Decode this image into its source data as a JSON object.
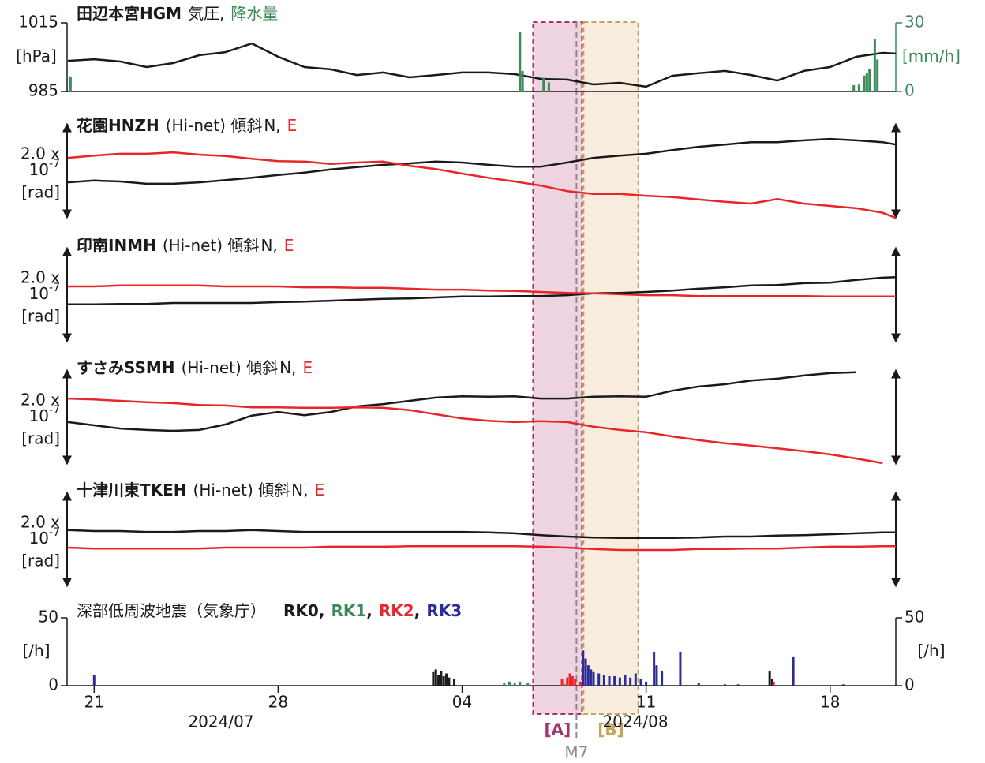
{
  "chart_data": [
    {
      "type": "line",
      "title": "田辺本宮HGM",
      "separator": ",",
      "ylabel": "[hPa]",
      "y2label": "[mm/h]",
      "ylim": [
        985,
        1015
      ],
      "yticks": [
        985,
        1015
      ],
      "y2lim": [
        0,
        30
      ],
      "y2ticks": [
        0,
        30
      ],
      "x": [
        20,
        21,
        22,
        23,
        24,
        25,
        26,
        27,
        28,
        29,
        30,
        31,
        32,
        33,
        34,
        35,
        36,
        37,
        38,
        39,
        40,
        41,
        42,
        43,
        44,
        45,
        46,
        47,
        48,
        49,
        50,
        51,
        51.5
      ],
      "series": [
        {
          "name": "気圧",
          "color": "#1a1a1a",
          "values": [
            998.4,
            999.1,
            998.1,
            995.7,
            997.4,
            1000.9,
            1002.2,
            1006,
            1000.2,
            995.7,
            994.7,
            992.2,
            993.3,
            991.2,
            992.2,
            993.3,
            993.3,
            992.6,
            990.5,
            990.2,
            988.1,
            988.8,
            987.1,
            991.9,
            993.0,
            994.0,
            992.2,
            989.8,
            994.0,
            995.7,
            1000.2,
            1001.9,
            1001.6
          ]
        },
        {
          "name": "降水量",
          "color": "#3a8a5a",
          "type": "bar",
          "axis": "y2",
          "x": [
            20.1,
            37.2,
            37.3,
            38.1,
            38.3,
            49.9,
            50.1,
            50.3,
            50.4,
            50.5,
            50.7,
            50.8
          ],
          "values": [
            6.6,
            26,
            9,
            6,
            4,
            2.8,
            3,
            7,
            8,
            9.7,
            23,
            14
          ]
        }
      ]
    },
    {
      "type": "line",
      "title": "花園HNZH",
      "subtitle": "(Hi-net) 傾斜",
      "separator": ",",
      "scale_bar": {
        "value": 2.0,
        "label": "2.0 x"
      },
      "scale_base": "10",
      "scale_exponent": "-7",
      "scale_unit": "[rad]",
      "ylim": [
        0,
        2
      ],
      "x": [
        20,
        21,
        22,
        23,
        24,
        25,
        26,
        27,
        28,
        29,
        30,
        31,
        32,
        33,
        34,
        35,
        36,
        37,
        38,
        39,
        40,
        41,
        42,
        43,
        44,
        45,
        46,
        47,
        48,
        49,
        50,
        51,
        51.5
      ],
      "series": [
        {
          "name": "N",
          "color": "#1a1a1a",
          "values": [
            0.75,
            0.79,
            0.77,
            0.72,
            0.72,
            0.75,
            0.8,
            0.85,
            0.91,
            0.96,
            1.03,
            1.08,
            1.13,
            1.16,
            1.2,
            1.18,
            1.13,
            1.09,
            1.09,
            1.18,
            1.28,
            1.33,
            1.37,
            1.45,
            1.52,
            1.57,
            1.62,
            1.62,
            1.66,
            1.69,
            1.66,
            1.62,
            1.57
          ]
        },
        {
          "name": "E",
          "color": "#e8262a",
          "values": [
            1.28,
            1.33,
            1.37,
            1.37,
            1.4,
            1.35,
            1.32,
            1.26,
            1.21,
            1.2,
            1.15,
            1.18,
            1.2,
            1.11,
            1.04,
            0.94,
            0.85,
            0.77,
            0.68,
            0.56,
            0.5,
            0.5,
            0.46,
            0.43,
            0.38,
            0.33,
            0.29,
            0.39,
            0.29,
            0.24,
            0.19,
            0.09,
            -0.02
          ]
        }
      ]
    },
    {
      "type": "line",
      "title": "印南INMH",
      "subtitle": "(Hi-net) 傾斜",
      "separator": ",",
      "scale_bar": {
        "value": 2.0,
        "label": "2.0 x"
      },
      "scale_base": "10",
      "scale_exponent": "-7",
      "scale_unit": "[rad]",
      "ylim": [
        0,
        2
      ],
      "x": [
        20,
        21,
        22,
        23,
        24,
        25,
        26,
        27,
        28,
        29,
        30,
        31,
        32,
        33,
        34,
        35,
        36,
        37,
        38,
        39,
        40,
        41,
        42,
        43,
        44,
        45,
        46,
        47,
        48,
        49,
        50,
        51,
        51.5
      ],
      "series": [
        {
          "name": "N",
          "color": "#1a1a1a",
          "values": [
            0.79,
            0.79,
            0.8,
            0.8,
            0.82,
            0.82,
            0.82,
            0.82,
            0.84,
            0.85,
            0.87,
            0.89,
            0.91,
            0.92,
            0.94,
            0.96,
            0.96,
            0.97,
            0.97,
            0.99,
            1.03,
            1.04,
            1.06,
            1.09,
            1.13,
            1.16,
            1.2,
            1.21,
            1.25,
            1.26,
            1.32,
            1.37,
            1.38
          ]
        },
        {
          "name": "E",
          "color": "#e8262a",
          "values": [
            1.18,
            1.18,
            1.2,
            1.2,
            1.2,
            1.2,
            1.18,
            1.18,
            1.18,
            1.16,
            1.16,
            1.15,
            1.15,
            1.13,
            1.11,
            1.11,
            1.09,
            1.08,
            1.06,
            1.04,
            1.03,
            1.01,
            0.99,
            0.99,
            0.97,
            0.97,
            0.97,
            0.97,
            0.97,
            0.96,
            0.96,
            0.96,
            0.96
          ]
        }
      ]
    },
    {
      "type": "line",
      "title": "すさみSSMH",
      "subtitle": "(Hi-net) 傾斜",
      "separator": ",",
      "scale_bar": {
        "value": 2.0,
        "label": "2.0 x"
      },
      "scale_base": "10",
      "scale_exponent": "-7",
      "scale_unit": "[rad]",
      "ylim": [
        0,
        2
      ],
      "x": [
        20,
        21,
        22,
        23,
        24,
        25,
        26,
        27,
        28,
        29,
        30,
        31,
        32,
        33,
        34,
        35,
        36,
        37,
        38,
        39,
        40,
        41,
        42,
        43,
        44,
        45,
        46,
        47,
        48,
        49,
        50,
        51,
        51.5
      ],
      "series": [
        {
          "name": "N",
          "color": "#1a1a1a",
          "values": [
            0.89,
            0.82,
            0.75,
            0.72,
            0.7,
            0.72,
            0.84,
            1.03,
            1.11,
            1.04,
            1.11,
            1.23,
            1.28,
            1.35,
            1.42,
            1.45,
            1.44,
            1.45,
            1.4,
            1.4,
            1.44,
            1.45,
            1.44,
            1.57,
            1.66,
            1.71,
            1.79,
            1.83,
            1.9,
            1.95,
            1.97,
            null,
            null
          ]
        },
        {
          "name": "E",
          "color": "#e8262a",
          "values": [
            1.4,
            1.38,
            1.35,
            1.32,
            1.3,
            1.26,
            1.25,
            1.21,
            1.21,
            1.2,
            1.2,
            1.21,
            1.2,
            1.15,
            1.06,
            0.97,
            0.92,
            0.89,
            0.91,
            0.89,
            0.79,
            0.72,
            0.67,
            0.58,
            0.5,
            0.43,
            0.38,
            0.32,
            0.26,
            0.19,
            0.1,
            0.0,
            null
          ]
        }
      ]
    },
    {
      "type": "line",
      "title": "十津川東TKEH",
      "subtitle": "(Hi-net) 傾斜",
      "separator": ",",
      "scale_bar": {
        "value": 2.0,
        "label": "2.0 x"
      },
      "scale_base": "10",
      "scale_exponent": "-7",
      "scale_unit": "[rad]",
      "ylim": [
        0,
        2
      ],
      "x": [
        20,
        21,
        22,
        23,
        24,
        25,
        26,
        27,
        28,
        29,
        30,
        31,
        32,
        33,
        34,
        35,
        36,
        37,
        38,
        39,
        40,
        41,
        42,
        43,
        44,
        45,
        46,
        47,
        48,
        49,
        50,
        51,
        51.5
      ],
      "series": [
        {
          "name": "N",
          "color": "#1a1a1a",
          "values": [
            1.2,
            1.18,
            1.18,
            1.16,
            1.16,
            1.18,
            1.18,
            1.2,
            1.18,
            1.16,
            1.16,
            1.16,
            1.16,
            1.16,
            1.16,
            1.16,
            1.15,
            1.13,
            1.09,
            1.06,
            1.04,
            1.03,
            1.03,
            1.03,
            1.04,
            1.06,
            1.06,
            1.08,
            1.09,
            1.11,
            1.13,
            1.15,
            1.15
          ]
        },
        {
          "name": "E",
          "color": "#e8262a",
          "values": [
            0.82,
            0.8,
            0.8,
            0.8,
            0.8,
            0.8,
            0.82,
            0.82,
            0.82,
            0.82,
            0.84,
            0.84,
            0.84,
            0.85,
            0.85,
            0.85,
            0.85,
            0.85,
            0.84,
            0.82,
            0.79,
            0.77,
            0.77,
            0.77,
            0.79,
            0.79,
            0.8,
            0.8,
            0.82,
            0.84,
            0.84,
            0.85,
            0.85
          ]
        }
      ]
    },
    {
      "type": "bar",
      "title": "深部低周波地震（気象庁）",
      "separator": ",",
      "ylabel": "[/h]",
      "y2label": "[/h]",
      "ylim": [
        0,
        50
      ],
      "yticks": [
        0,
        50
      ],
      "y2lim": [
        0,
        50
      ],
      "y2ticks": [
        0,
        50
      ],
      "xlim": [
        20,
        51.5
      ],
      "xticks": [
        21,
        28,
        {
          "value": 35,
          "label": "04"
        },
        {
          "value": 42,
          "label": "11"
        },
        {
          "value": 49,
          "label": "18"
        }
      ],
      "months": [
        "2024/07",
        "2024/08"
      ],
      "series": [
        {
          "name": "RK0",
          "color": "#1a1a1a",
          "x": [
            33.9,
            34.0,
            34.1,
            34.2,
            34.3,
            34.4,
            34.5,
            34.7,
            46.7,
            46.8
          ],
          "values": [
            10,
            12,
            8,
            11,
            7,
            9,
            6,
            5,
            11,
            5
          ]
        },
        {
          "name": "RK1",
          "color": "#3a8a5a",
          "x": [
            36.6,
            36.8,
            37.0,
            37.2,
            37.5,
            38.9
          ],
          "values": [
            2,
            3,
            2,
            3,
            2,
            1
          ]
        },
        {
          "name": "RK2",
          "color": "#e8262a",
          "x": [
            38.8,
            39.0,
            39.1,
            39.2,
            39.3,
            39.5,
            46.85
          ],
          "values": [
            5,
            6,
            9,
            7,
            5,
            3,
            3
          ]
        },
        {
          "name": "RK3",
          "color": "#2b2b9a",
          "x": [
            21.0,
            39.6,
            39.7,
            39.8,
            39.9,
            40.0,
            40.2,
            40.4,
            40.6,
            40.8,
            41.0,
            41.2,
            41.4,
            41.6,
            41.8,
            42.0,
            42.3,
            42.4,
            42.6,
            43.3,
            44.0,
            45.0,
            45.5,
            47.6,
            49.5
          ],
          "values": [
            8,
            26,
            20,
            15,
            12,
            10,
            9,
            8,
            7,
            7,
            6,
            8,
            6,
            9,
            5,
            3,
            25,
            15,
            11,
            25,
            2,
            1,
            1,
            21,
            1
          ]
        }
      ]
    }
  ],
  "annotations": {
    "regions": [
      {
        "label": "[A]",
        "x": [
          37.7,
          39.56
        ],
        "color": "#e8c6d6",
        "border": "#a8336a"
      },
      {
        "label": "[B]",
        "x": [
          39.62,
          41.7
        ],
        "color": "#f4e6d2",
        "border": "#c9a25a"
      }
    ],
    "event": {
      "label": "M7",
      "x": 39.35,
      "color": "#8a8a8a"
    }
  }
}
